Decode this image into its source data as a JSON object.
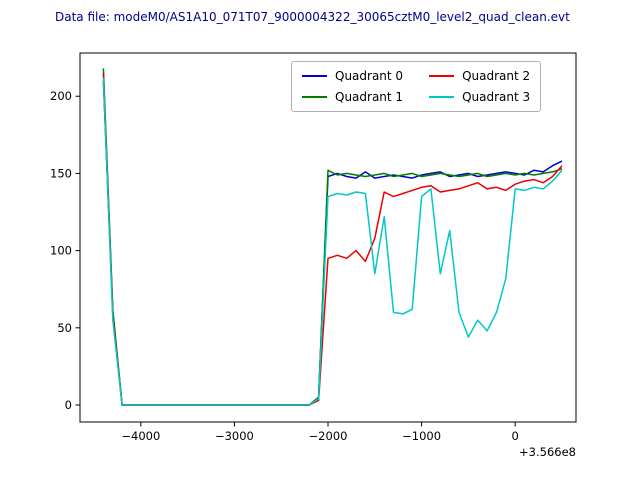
{
  "title": "Data file: modeM0/AS1A10_071T07_9000004322_30065cztM0_level2_quad_clean.evt",
  "axes": {
    "xlim": [
      -4650,
      650
    ],
    "ylim": [
      -11,
      228
    ],
    "x_ticks": [
      {
        "value": -4000,
        "label": "−4000"
      },
      {
        "value": -3000,
        "label": "−3000"
      },
      {
        "value": -2000,
        "label": "−2000"
      },
      {
        "value": -1000,
        "label": "−1000"
      },
      {
        "value": 0,
        "label": "0"
      }
    ],
    "y_ticks": [
      {
        "value": 0,
        "label": "0"
      },
      {
        "value": 50,
        "label": "50"
      },
      {
        "value": 100,
        "label": "100"
      },
      {
        "value": 150,
        "label": "150"
      },
      {
        "value": 200,
        "label": "200"
      }
    ],
    "x_offset_label": "+3.566e8"
  },
  "chart_data": {
    "type": "line",
    "title": "Data file: modeM0/AS1A10_071T07_9000004322_30065cztM0_level2_quad_clean.evt",
    "xlabel": "",
    "ylabel": "",
    "grid": false,
    "legend_position": "upper right (inside axes, 2 columns)",
    "x": [
      -4400,
      -4300,
      -4200,
      -4100,
      -4000,
      -3900,
      -3800,
      -3700,
      -3600,
      -3500,
      -3400,
      -3300,
      -3200,
      -3100,
      -3000,
      -2900,
      -2800,
      -2700,
      -2600,
      -2500,
      -2400,
      -2300,
      -2200,
      -2100,
      -2000,
      -1900,
      -1800,
      -1700,
      -1600,
      -1500,
      -1400,
      -1300,
      -1200,
      -1100,
      -1000,
      -900,
      -800,
      -700,
      -600,
      -500,
      -400,
      -300,
      -200,
      -100,
      0,
      100,
      200,
      300,
      400,
      500
    ],
    "x_offset": 356600000,
    "series": [
      {
        "name": "Quadrant 0",
        "color": "#0000cd",
        "values": [
          210,
          60,
          0,
          0,
          0,
          0,
          0,
          0,
          0,
          0,
          0,
          0,
          0,
          0,
          0,
          0,
          0,
          0,
          0,
          0,
          0,
          0,
          0,
          5,
          148,
          150,
          148,
          147,
          151,
          147,
          148,
          149,
          148,
          147,
          149,
          150,
          151,
          148,
          149,
          150,
          148,
          149,
          150,
          151,
          150,
          149,
          152,
          151,
          155,
          158
        ]
      },
      {
        "name": "Quadrant 1",
        "color": "#007d00",
        "values": [
          218,
          62,
          0,
          0,
          0,
          0,
          0,
          0,
          0,
          0,
          0,
          0,
          0,
          0,
          0,
          0,
          0,
          0,
          0,
          0,
          0,
          0,
          0,
          5,
          152,
          149,
          150,
          149,
          148,
          149,
          150,
          148,
          149,
          150,
          148,
          149,
          150,
          149,
          148,
          149,
          150,
          148,
          149,
          150,
          149,
          150,
          149,
          150,
          151,
          153
        ]
      },
      {
        "name": "Quadrant 2",
        "color": "#ea0000",
        "values": [
          215,
          58,
          0,
          0,
          0,
          0,
          0,
          0,
          0,
          0,
          0,
          0,
          0,
          0,
          0,
          0,
          0,
          0,
          0,
          0,
          0,
          0,
          0,
          3,
          95,
          97,
          95,
          100,
          93,
          108,
          138,
          135,
          137,
          139,
          141,
          142,
          138,
          139,
          140,
          142,
          144,
          140,
          141,
          139,
          143,
          145,
          146,
          144,
          148,
          155
        ]
      },
      {
        "name": "Quadrant 3",
        "color": "#00c8c8",
        "values": [
          212,
          55,
          0,
          0,
          0,
          0,
          0,
          0,
          0,
          0,
          0,
          0,
          0,
          0,
          0,
          0,
          0,
          0,
          0,
          0,
          0,
          0,
          0,
          4,
          135,
          137,
          136,
          138,
          137,
          85,
          122,
          60,
          59,
          62,
          135,
          140,
          85,
          113,
          60,
          44,
          55,
          48,
          60,
          82,
          140,
          139,
          141,
          140,
          145,
          152
        ]
      }
    ]
  }
}
